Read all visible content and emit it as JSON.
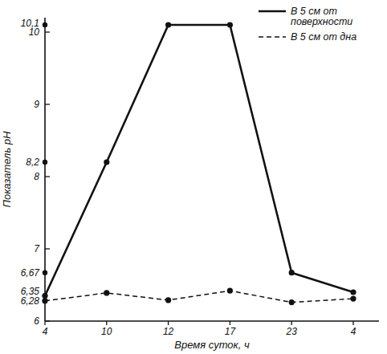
{
  "chart_data": {
    "type": "line",
    "x_label": "Время суток, ч",
    "y_label": "Показатель pH",
    "categories": [
      "4",
      "10",
      "12",
      "17",
      "23",
      "4"
    ],
    "series": [
      {
        "name": "В 5 см от поверхности",
        "color": "#111111",
        "line_style": "solid",
        "marker": "circle",
        "values": [
          6.35,
          8.2,
          10.1,
          10.1,
          6.67,
          6.4
        ]
      },
      {
        "name": "В 5 см от дна",
        "color": "#111111",
        "line_style": "dashed",
        "marker": "circle",
        "values": [
          6.28,
          6.39,
          6.29,
          6.42,
          6.26,
          6.31
        ]
      }
    ],
    "ylim": [
      6,
      10.2
    ],
    "yticks": [
      6,
      {
        "value": 6.28,
        "label": "6,28"
      },
      {
        "value": 6.35,
        "label": "6,35"
      },
      {
        "value": 6.67,
        "label": "6,67"
      },
      7,
      8,
      {
        "value": 8.2,
        "label": "8,2"
      },
      9,
      10,
      {
        "value": 10.1,
        "label": "10,1"
      }
    ],
    "grid": false,
    "legend": "upper right"
  }
}
